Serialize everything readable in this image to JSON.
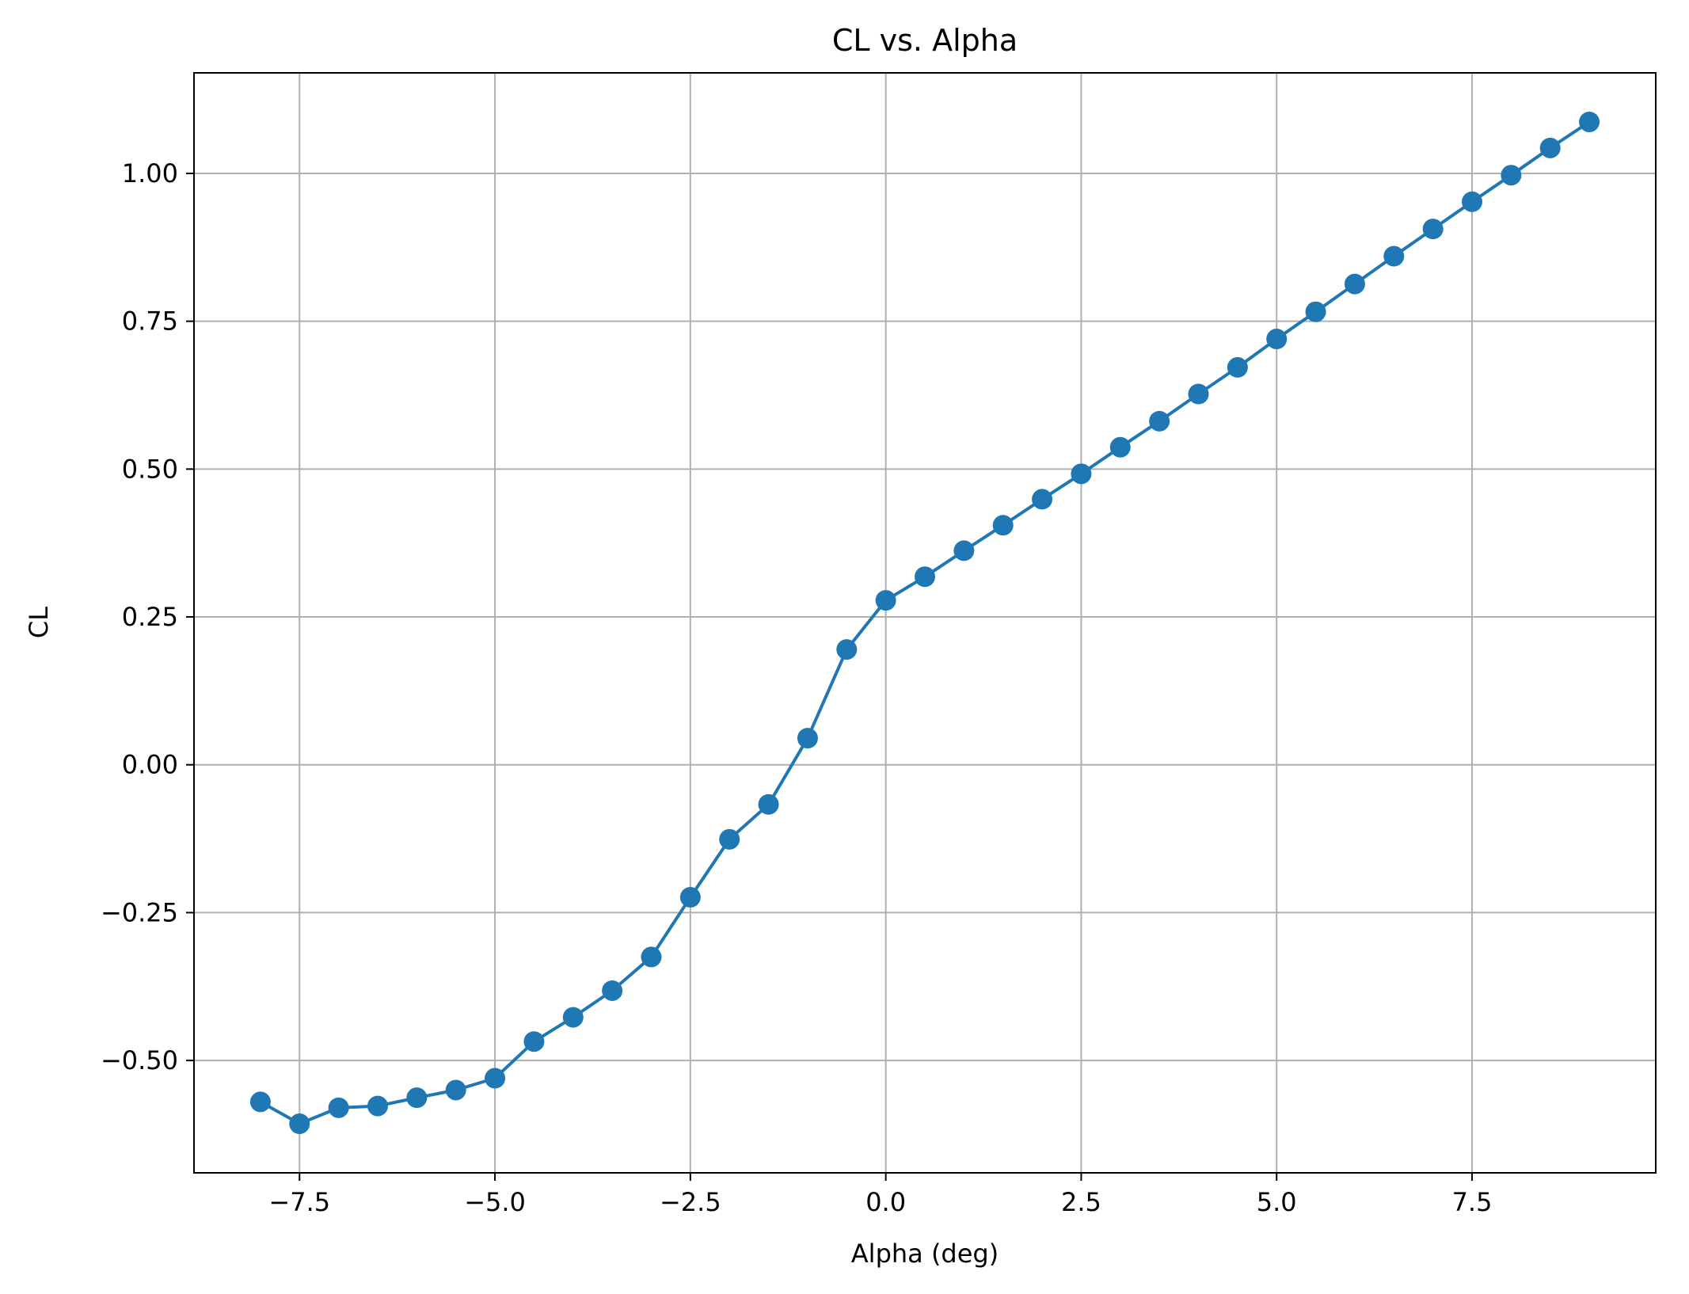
{
  "chart_data": {
    "type": "line",
    "title": "CL vs. Alpha",
    "xlabel": "Alpha (deg)",
    "ylabel": "CL",
    "xlim": [
      -8.85,
      9.85
    ],
    "ylim": [
      -0.69,
      1.17
    ],
    "grid": true,
    "marker": "circle",
    "x_ticks": [
      -7.5,
      -5.0,
      -2.5,
      0.0,
      2.5,
      5.0,
      7.5
    ],
    "x_tick_labels": [
      "−7.5",
      "−5.0",
      "−2.5",
      "0.0",
      "2.5",
      "5.0",
      "7.5"
    ],
    "y_ticks": [
      -0.5,
      -0.25,
      0.0,
      0.25,
      0.5,
      0.75,
      1.0
    ],
    "y_tick_labels": [
      "−0.50",
      "−0.25",
      "0.00",
      "0.25",
      "0.50",
      "0.75",
      "1.00"
    ],
    "series": [
      {
        "color": "#1f77b4",
        "x": [
          -8.0,
          -7.5,
          -7.0,
          -6.5,
          -6.0,
          -5.5,
          -5.0,
          -4.5,
          -4.0,
          -3.5,
          -3.0,
          -2.5,
          -2.0,
          -1.5,
          -1.0,
          -0.5,
          0.0,
          0.5,
          1.0,
          1.5,
          2.0,
          2.5,
          3.0,
          3.5,
          4.0,
          4.5,
          5.0,
          5.5,
          6.0,
          6.5,
          7.0,
          7.5,
          8.0,
          8.5,
          9.0
        ],
        "y": [
          -0.57,
          -0.607,
          -0.58,
          -0.577,
          -0.563,
          -0.55,
          -0.53,
          -0.468,
          -0.427,
          -0.382,
          -0.325,
          -0.224,
          -0.126,
          -0.067,
          0.045,
          0.195,
          0.278,
          0.318,
          0.362,
          0.405,
          0.449,
          0.492,
          0.537,
          0.581,
          0.627,
          0.672,
          0.72,
          0.766,
          0.813,
          0.86,
          0.906,
          0.952,
          0.997,
          1.043,
          1.087
        ]
      }
    ]
  }
}
